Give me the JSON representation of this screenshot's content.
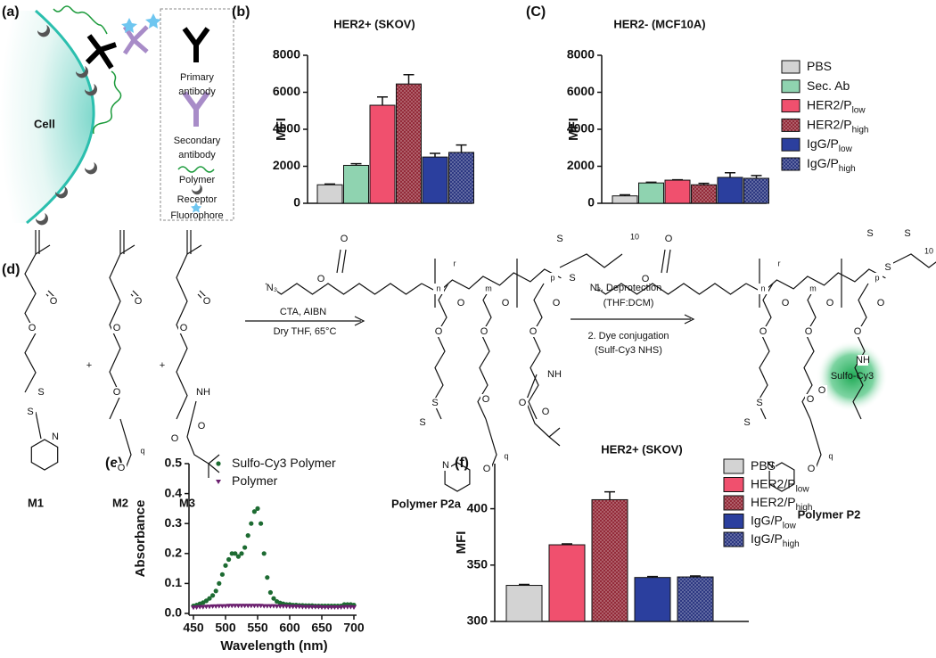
{
  "panel_labels": [
    "(a)",
    "(b)",
    "(C)",
    "(d)",
    "(e)",
    "(f)"
  ],
  "schematic": {
    "cell": "Cell",
    "key": [
      [
        "Primary",
        "antibody"
      ],
      [
        "Secondary",
        "antibody"
      ],
      [
        "Polymer"
      ],
      [
        "Receptor"
      ],
      [
        "Fluorophore"
      ]
    ]
  },
  "scheme": {
    "monomers": [
      "M1",
      "M2",
      "M3"
    ],
    "plus": [
      "+",
      "+"
    ],
    "step1": [
      "CTA, AIBN",
      "Dry THF, 65°C"
    ],
    "step2": [
      "1. Deprotection",
      "(THF:DCM)",
      "2. Dye conjugation",
      "(Sulf-Cy3 NHS)"
    ],
    "products": [
      "Polymer P2a",
      "Polymer P2"
    ],
    "dye": "Sulfo-Cy3",
    "atoms": [
      "O",
      "O",
      "S",
      "S",
      "N",
      "O",
      "O",
      "O",
      "O",
      "q",
      "O",
      "O",
      "NH",
      "O",
      "O",
      "N₃",
      "O",
      "O",
      "n",
      "r",
      "m",
      "p",
      "S",
      "S",
      "10",
      "O",
      "O",
      "S",
      "S",
      "N",
      "O",
      "O",
      "O",
      "O",
      "q",
      "O",
      "O",
      "NH",
      "O",
      "O",
      "N₃",
      "O",
      "O",
      "n",
      "r",
      "m",
      "p",
      "S",
      "S",
      "S",
      "10",
      "O",
      "O",
      "S",
      "S",
      "N",
      "O",
      "O",
      "O",
      "O",
      "q",
      "O",
      "O",
      "NH",
      "O"
    ]
  },
  "chart_data": [
    {
      "type": "bar",
      "title": "HER2+ (SKOV)",
      "y_label": "MFI",
      "ylim": [
        0,
        8000
      ],
      "yticks": [
        0,
        2000,
        4000,
        6000,
        8000
      ],
      "series": [
        {
          "color": "#d3d3d3",
          "values": [
            1000
          ],
          "errors": [
            40
          ]
        },
        {
          "color": "#8fd3b0",
          "values": [
            2050
          ],
          "errors": [
            90
          ]
        },
        {
          "color": "#f0506e",
          "values": [
            5300
          ],
          "errors": [
            450
          ]
        },
        {
          "color": "#8c1d2c",
          "pattern": "crosshatch",
          "values": [
            6450
          ],
          "errors": [
            500
          ]
        },
        {
          "color": "#2b3f9e",
          "values": [
            2500
          ],
          "errors": [
            200
          ]
        },
        {
          "color": "#1f2b7a",
          "pattern": "crosshatch",
          "values": [
            2750
          ],
          "errors": [
            400
          ]
        }
      ]
    },
    {
      "type": "bar",
      "title": "HER2- (MCF10A)",
      "y_label": "MFI",
      "ylim": [
        0,
        8000
      ],
      "yticks": [
        0,
        2000,
        4000,
        6000,
        8000
      ],
      "legend": "right",
      "series": [
        {
          "name": "PBS",
          "color": "#d3d3d3",
          "values": [
            400
          ],
          "errors": [
            60
          ]
        },
        {
          "name": "Sec. Ab",
          "color": "#8fd3b0",
          "values": [
            1100
          ],
          "errors": [
            40
          ]
        },
        {
          "name": "HER2/P",
          "name_sub": "low",
          "color": "#f0506e",
          "values": [
            1250
          ],
          "errors": [
            20
          ]
        },
        {
          "name": "HER2/P",
          "name_sub": "high",
          "color": "#8c1d2c",
          "pattern": "crosshatch",
          "values": [
            1000
          ],
          "errors": [
            80
          ]
        },
        {
          "name": "IgG/P",
          "name_sub": "low",
          "color": "#2b3f9e",
          "values": [
            1400
          ],
          "errors": [
            250
          ]
        },
        {
          "name": "IgG/P",
          "name_sub": "high",
          "color": "#1f2b7a",
          "pattern": "crosshatch",
          "values": [
            1350
          ],
          "errors": [
            150
          ]
        }
      ]
    },
    {
      "type": "scatter",
      "x_label": "Wavelength (nm)",
      "y_label": "Absorbance",
      "legend": "upper left",
      "xlim": [
        450,
        700
      ],
      "ylim": [
        0,
        0.5
      ],
      "xticks": [
        450,
        500,
        550,
        600,
        650,
        700
      ],
      "yticks": [
        {
          "value": 0,
          "label": "0.0"
        },
        0.1,
        0.2,
        0.3,
        0.4,
        0.5
      ],
      "x": [
        450,
        455,
        460,
        465,
        470,
        475,
        480,
        485,
        490,
        495,
        500,
        505,
        510,
        515,
        520,
        525,
        530,
        535,
        540,
        545,
        550,
        555,
        560,
        565,
        570,
        575,
        580,
        585,
        590,
        595,
        600,
        605,
        610,
        615,
        620,
        625,
        630,
        635,
        640,
        645,
        650,
        655,
        660,
        665,
        670,
        675,
        680,
        685,
        690,
        695,
        700
      ],
      "series": [
        {
          "name": "Sulfo-Cy3 Polymer",
          "color": "#1d6b32",
          "marker": "circle",
          "values": [
            0.025,
            0.028,
            0.032,
            0.036,
            0.042,
            0.05,
            0.06,
            0.075,
            0.1,
            0.13,
            0.16,
            0.18,
            0.2,
            0.2,
            0.19,
            0.2,
            0.22,
            0.26,
            0.3,
            0.34,
            0.35,
            0.3,
            0.2,
            0.12,
            0.07,
            0.05,
            0.04,
            0.035,
            0.032,
            0.03,
            0.03,
            0.028,
            0.028,
            0.027,
            0.027,
            0.026,
            0.026,
            0.026,
            0.025,
            0.025,
            0.025,
            0.025,
            0.025,
            0.025,
            0.025,
            0.025,
            0.025,
            0.03,
            0.03,
            0.03,
            0.028
          ]
        },
        {
          "name": "Polymer",
          "color": "#6b1f6e",
          "marker": "triangle",
          "values": [
            0.02,
            0.021,
            0.022,
            0.022,
            0.023,
            0.023,
            0.024,
            0.024,
            0.025,
            0.025,
            0.025,
            0.026,
            0.026,
            0.026,
            0.026,
            0.026,
            0.026,
            0.026,
            0.026,
            0.026,
            0.026,
            0.026,
            0.025,
            0.025,
            0.025,
            0.025,
            0.024,
            0.024,
            0.024,
            0.024,
            0.023,
            0.023,
            0.023,
            0.023,
            0.022,
            0.022,
            0.022,
            0.022,
            0.022,
            0.022,
            0.021,
            0.021,
            0.021,
            0.021,
            0.021,
            0.021,
            0.021,
            0.022,
            0.022,
            0.022,
            0.021
          ]
        }
      ]
    },
    {
      "type": "bar",
      "title": "HER2+ (SKOV)",
      "y_label": "MFI",
      "ylim": [
        300,
        440
      ],
      "yticks": [
        300,
        350,
        400
      ],
      "legend": "right",
      "series": [
        {
          "name": "PBS",
          "color": "#d3d3d3",
          "values": [
            332
          ],
          "errors": [
            0.8
          ]
        },
        {
          "name": "HER2/P",
          "name_sub": "low",
          "color": "#f0506e",
          "values": [
            368
          ],
          "errors": [
            0.8
          ]
        },
        {
          "name": "HER2/P",
          "name_sub": "high",
          "color": "#8c1d2c",
          "pattern": "crosshatch",
          "values": [
            408
          ],
          "errors": [
            7
          ]
        },
        {
          "name": "IgG/P",
          "name_sub": "low",
          "color": "#2b3f9e",
          "values": [
            339
          ],
          "errors": [
            0.8
          ]
        },
        {
          "name": "IgG/P",
          "name_sub": "high",
          "color": "#1f2b7a",
          "pattern": "crosshatch",
          "values": [
            339.5
          ],
          "errors": [
            0.8
          ]
        }
      ]
    }
  ]
}
